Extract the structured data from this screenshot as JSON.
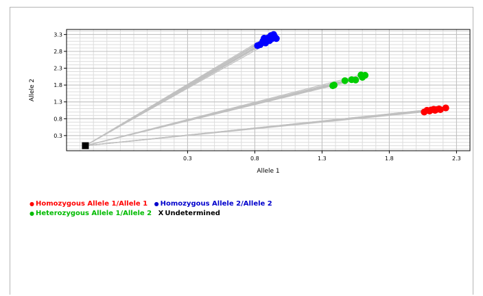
{
  "chart_data": {
    "type": "scatter",
    "xlabel": "Allele 1",
    "ylabel": "Allele 2",
    "xlim": [
      -0.6,
      2.4
    ],
    "ylim": [
      -0.15,
      3.45
    ],
    "xticks": [
      "0.3",
      "0.8",
      "1.3",
      "1.8",
      "2.3"
    ],
    "yticks": [
      "0.3",
      "0.8",
      "1.3",
      "1.8",
      "2.3",
      "2.8",
      "3.3"
    ],
    "xtick_values": [
      0.3,
      0.8,
      1.3,
      1.8,
      2.3
    ],
    "ytick_values": [
      0.3,
      0.8,
      1.3,
      1.8,
      2.3,
      2.8,
      3.3
    ],
    "minor_x_step": 0.1,
    "minor_y_step": 0.1,
    "grid": true,
    "legend_placement": "bottom-left",
    "series": [
      {
        "name": "Homozygous Allele 1/Allele 1",
        "color": "#ff0000",
        "marker": "dot",
        "x": [
          2.06,
          2.08,
          2.1,
          2.11,
          2.13,
          2.14,
          2.15,
          2.17,
          2.18,
          2.22
        ],
        "y": [
          1.0,
          1.05,
          1.03,
          1.06,
          1.08,
          1.05,
          1.07,
          1.09,
          1.07,
          1.12
        ]
      },
      {
        "name": "Homozygous Allele 2/Allele 2",
        "color": "#0000ff",
        "marker": "dot",
        "x": [
          0.82,
          0.84,
          0.86,
          0.87,
          0.88,
          0.9,
          0.91,
          0.92,
          0.93,
          0.94,
          0.95,
          0.96
        ],
        "y": [
          2.97,
          3.0,
          3.1,
          3.19,
          3.05,
          3.2,
          3.12,
          3.27,
          3.18,
          3.3,
          3.22,
          3.18
        ]
      },
      {
        "name": "Heterozygous Allele 1/Allele 2",
        "color": "#00cc00",
        "marker": "dot",
        "x": [
          1.38,
          1.39,
          1.47,
          1.52,
          1.55,
          1.59,
          1.6,
          1.62
        ],
        "y": [
          1.78,
          1.8,
          1.93,
          1.96,
          1.95,
          2.1,
          2.03,
          2.09
        ]
      },
      {
        "name": "Undetermined",
        "color": "#000000",
        "marker": "X",
        "x": [
          -0.46
        ],
        "y": [
          0.0
        ]
      }
    ],
    "trace_color": "#c0c0c0",
    "trace_origin": {
      "x": -0.46,
      "y": 0.0
    }
  },
  "legend": {
    "rows": [
      [
        {
          "label": "Homozygous Allele 1/Allele 1",
          "color": "#ff0000",
          "marker": "●"
        },
        {
          "label": "Homozygous Allele 2/Allele 2",
          "color": "#0000cc",
          "marker": "●"
        }
      ],
      [
        {
          "label": "Heterozygous Allele 1/Allele 2",
          "color": "#00bb00",
          "marker": "●"
        },
        {
          "label": "Undetermined",
          "color": "#000000",
          "marker": "X"
        }
      ]
    ]
  }
}
